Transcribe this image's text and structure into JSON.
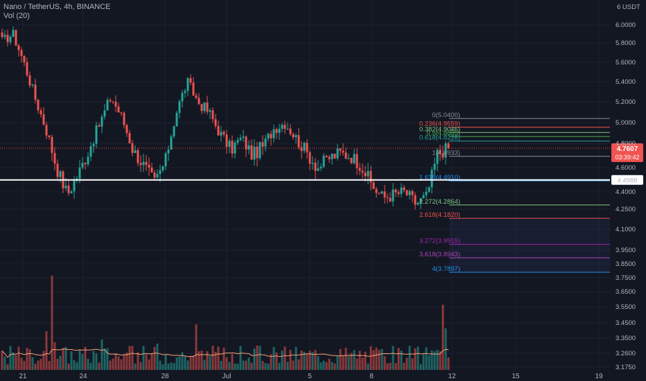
{
  "header": {
    "title": "Nano / TetherUS, 4h, BINANCE",
    "indicator": "Vol (20)"
  },
  "colors": {
    "background": "#131722",
    "up": "#26a69a",
    "down": "#ef5350",
    "grid": "#1e222d",
    "axis_text": "#b2b5be",
    "support_line": "#ffffff",
    "price_label": "#ef5350",
    "volume_ma": "#f7a278"
  },
  "chart_data": {
    "type": "candlestick",
    "currency_label": "6 USDT",
    "y_ticks": [
      "6.0000",
      "5.8000",
      "5.6000",
      "5.4000",
      "5.2000",
      "5.0000",
      "4.8000",
      "4.6000",
      "4.4000",
      "4.2500",
      "4.1000",
      "3.9500",
      "3.8500",
      "3.7500",
      "3.6500",
      "3.5500",
      "3.4500",
      "3.3500",
      "3.2600",
      "3.1750"
    ],
    "x_ticks": [
      "21",
      "24",
      "28",
      "Jul",
      "5",
      "8",
      "12",
      "15",
      "19"
    ],
    "ohlc_anchors": [
      5.82,
      5.9,
      5.6,
      5.25,
      4.95,
      4.6,
      4.38,
      4.55,
      4.75,
      5.0,
      5.25,
      5.05,
      4.75,
      4.62,
      4.48,
      4.65,
      5.1,
      5.4,
      5.2,
      5.1,
      4.9,
      4.75,
      4.85,
      4.7,
      4.78,
      4.95,
      5.0,
      4.85,
      4.72,
      4.6,
      4.68,
      4.72,
      4.7,
      4.62,
      4.45,
      4.35,
      4.38,
      4.4,
      4.3,
      4.36,
      4.72,
      4.76
    ],
    "price_current": "4.7607",
    "countdown": "03:39:42",
    "support_level": "4.4988",
    "fib_levels": [
      {
        "label": "0(5.0400)",
        "value": 5.04,
        "color": "#8d8f96"
      },
      {
        "label": "0.236(4.9559)",
        "value": 4.9559,
        "color": "#f05350"
      },
      {
        "label": "0.382(4.9046)",
        "value": 4.9046,
        "color": "#81c784"
      },
      {
        "label": "0.5(4.8655)",
        "value": 4.8655,
        "color": "#4caf50"
      },
      {
        "label": "0.618(4.8228)",
        "value": 4.8228,
        "color": "#26a69a"
      },
      {
        "label": "1(4.6933)",
        "value": 4.6933,
        "color": "#8d8f96"
      },
      {
        "label": "1.618(4.4910)",
        "value": 4.491,
        "color": "#2196f3"
      },
      {
        "label": "2.272(4.2864)",
        "value": 4.2864,
        "color": "#81c784"
      },
      {
        "label": "2.618(4.1820)",
        "value": 4.182,
        "color": "#f05350"
      },
      {
        "label": "3.272(3.9915)",
        "value": 3.9915,
        "color": "#9c27b0"
      },
      {
        "label": "3.618(3.8943)",
        "value": 3.8943,
        "color": "#ab47bc"
      },
      {
        "label": "4(3.7897)",
        "value": 3.7897,
        "color": "#2196f3"
      }
    ]
  }
}
